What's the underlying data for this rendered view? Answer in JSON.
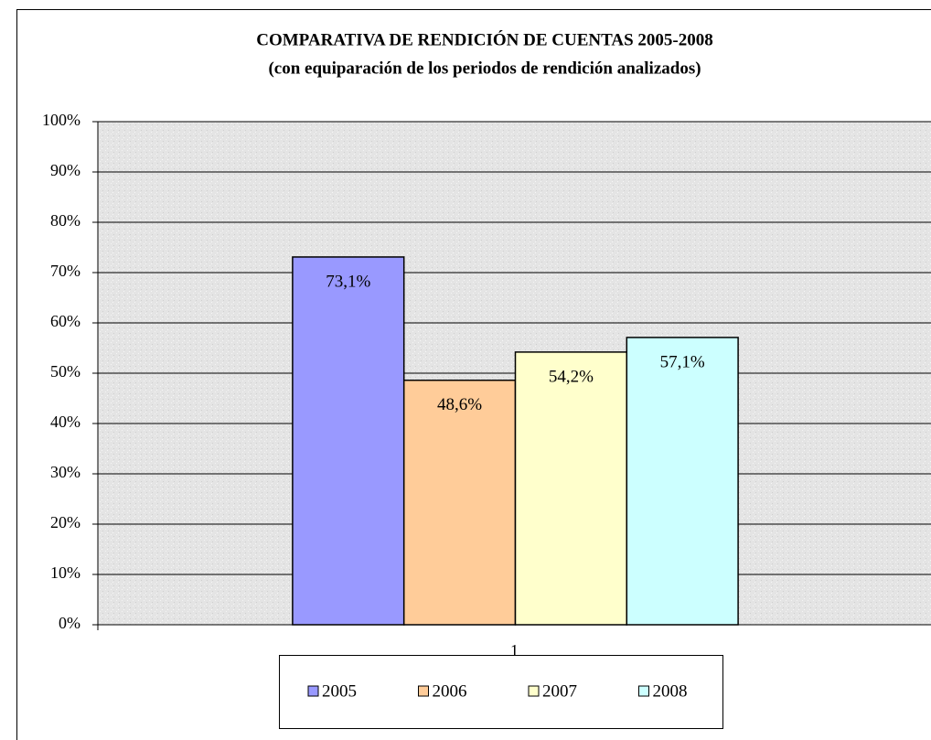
{
  "chart_data": {
    "type": "bar",
    "title": "COMPARATIVA DE RENDICIÓN DE CUENTAS 2005-2008",
    "subtitle": "(con equiparación de los periodos de rendición analizados)",
    "categories": [
      "1"
    ],
    "series": [
      {
        "name": "2005",
        "color": "#9999ff",
        "values": [
          73.1
        ],
        "value_labels": [
          "73,1%"
        ]
      },
      {
        "name": "2006",
        "color": "#ffcc99",
        "values": [
          48.6
        ],
        "value_labels": [
          "48,6%"
        ]
      },
      {
        "name": "2007",
        "color": "#ffffcc",
        "values": [
          54.2
        ],
        "value_labels": [
          "54,2%"
        ]
      },
      {
        "name": "2008",
        "color": "#ccffff",
        "values": [
          57.1
        ],
        "value_labels": [
          "57,1%"
        ]
      }
    ],
    "ylim": [
      0,
      100
    ],
    "yticks": [
      {
        "value": 0,
        "label": "0%"
      },
      {
        "value": 10,
        "label": "10%"
      },
      {
        "value": 20,
        "label": "20%"
      },
      {
        "value": 30,
        "label": "30%"
      },
      {
        "value": 40,
        "label": "40%"
      },
      {
        "value": 50,
        "label": "50%"
      },
      {
        "value": 60,
        "label": "60%"
      },
      {
        "value": 70,
        "label": "70%"
      },
      {
        "value": 80,
        "label": "80%"
      },
      {
        "value": 90,
        "label": "90%"
      },
      {
        "value": 100,
        "label": "100%"
      }
    ],
    "grid": true,
    "legend": "bottom"
  }
}
